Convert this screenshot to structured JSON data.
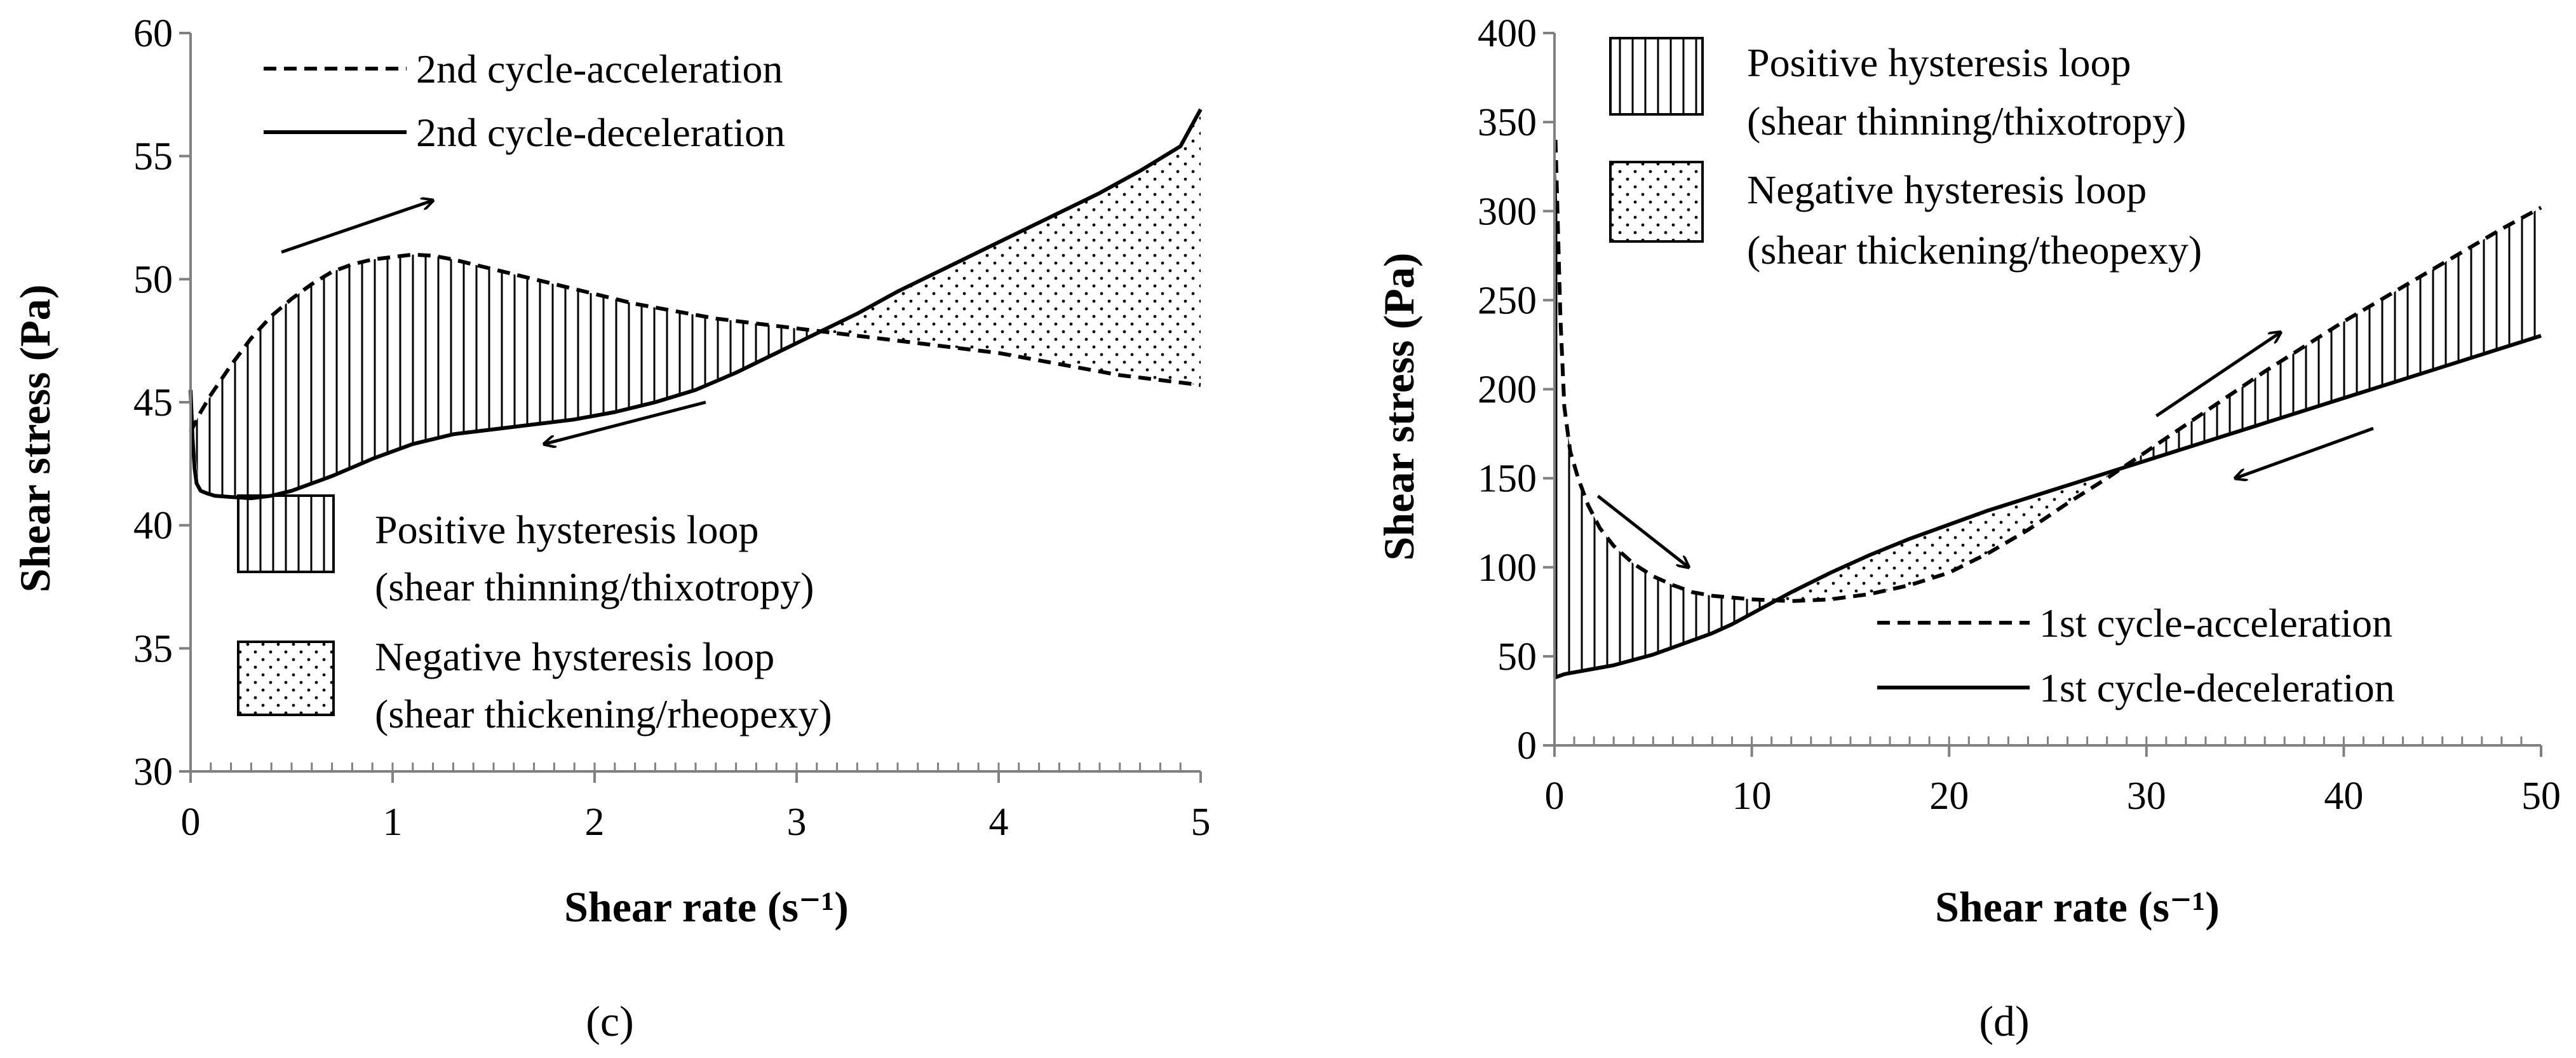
{
  "chart_data": [
    {
      "type": "line",
      "panel_label": "(c)",
      "xlabel": "Shear rate (s⁻¹)",
      "ylabel": "Shear stress (Pa)",
      "xlim": [
        0,
        5
      ],
      "ylim": [
        30,
        60
      ],
      "xticks": [
        "0",
        "1",
        "2",
        "3",
        "4",
        "5"
      ],
      "yticks": [
        "30",
        "35",
        "40",
        "45",
        "50",
        "55",
        "60"
      ],
      "series": [
        {
          "name": "2nd cycle-acceleration",
          "style": "dashed",
          "x": [
            0.0,
            0.05,
            0.1,
            0.2,
            0.3,
            0.4,
            0.5,
            0.6,
            0.7,
            0.8,
            0.9,
            1.0,
            1.1,
            1.2,
            1.3,
            1.4,
            1.5,
            1.6,
            1.7,
            1.8,
            1.9,
            2.0,
            2.2,
            2.4,
            2.6,
            2.8,
            3.0,
            3.2,
            3.4,
            3.6,
            3.8,
            4.0,
            4.2,
            4.4,
            4.6,
            4.8,
            5.0
          ],
          "y": [
            43.8,
            44.6,
            45.3,
            46.5,
            47.6,
            48.5,
            49.2,
            49.8,
            50.3,
            50.6,
            50.8,
            50.9,
            51.0,
            50.95,
            50.8,
            50.6,
            50.4,
            50.2,
            50.0,
            49.8,
            49.6,
            49.4,
            49.0,
            48.7,
            48.4,
            48.2,
            48.0,
            47.8,
            47.6,
            47.4,
            47.2,
            47.0,
            46.7,
            46.4,
            46.1,
            45.9,
            45.7
          ]
        },
        {
          "name": "2nd cycle-deceleration",
          "style": "solid",
          "x": [
            0.0,
            0.01,
            0.02,
            0.03,
            0.05,
            0.08,
            0.12,
            0.2,
            0.3,
            0.4,
            0.5,
            0.7,
            0.9,
            1.1,
            1.3,
            1.5,
            1.7,
            1.9,
            2.1,
            2.3,
            2.5,
            2.7,
            2.9,
            3.1,
            3.3,
            3.5,
            3.7,
            3.9,
            4.1,
            4.3,
            4.5,
            4.7,
            4.9,
            5.0
          ],
          "y": [
            45.5,
            43.5,
            42.3,
            41.7,
            41.4,
            41.3,
            41.2,
            41.15,
            41.1,
            41.2,
            41.4,
            42.0,
            42.7,
            43.3,
            43.7,
            43.9,
            44.1,
            44.3,
            44.6,
            45.0,
            45.5,
            46.2,
            47.0,
            47.8,
            48.6,
            49.5,
            50.3,
            51.1,
            51.9,
            52.7,
            53.5,
            54.4,
            55.4,
            56.9
          ]
        }
      ],
      "shaded_regions": [
        {
          "label": "Positive hysteresis loop",
          "description": "(shear thinning/thixotropy)",
          "x_range": [
            0,
            3.15
          ],
          "pattern": "vertical-lines"
        },
        {
          "label": "Negative hysteresis loop",
          "description": "(shear thickening/rheopexy)",
          "x_range": [
            3.15,
            5
          ],
          "pattern": "dots"
        }
      ],
      "arrows": [
        {
          "direction": "up-right",
          "x": [
            0.45,
            1.2
          ],
          "y": [
            51.1,
            53.2
          ]
        },
        {
          "direction": "down-left",
          "x": [
            2.55,
            1.75
          ],
          "y": [
            45.0,
            43.3
          ]
        }
      ],
      "legend": [
        "2nd cycle-acceleration",
        "2nd cycle-deceleration"
      ]
    },
    {
      "type": "line",
      "panel_label": "(d)",
      "xlabel": "Shear rate (s⁻¹)",
      "ylabel": "Shear stress (Pa)",
      "xlim": [
        0,
        50
      ],
      "ylim": [
        0,
        400
      ],
      "xticks": [
        "0",
        "10",
        "20",
        "30",
        "40",
        "50"
      ],
      "yticks": [
        "0",
        "50",
        "100",
        "150",
        "200",
        "250",
        "300",
        "350",
        "400"
      ],
      "series": [
        {
          "name": "1st cycle-acceleration",
          "style": "dashed",
          "x": [
            0.05,
            0.15,
            0.3,
            0.5,
            0.8,
            1.2,
            1.7,
            2.3,
            3.0,
            4.0,
            5.0,
            6.0,
            7.0,
            8.0,
            9.0,
            10.0,
            12.0,
            14.0,
            16.0,
            18.0,
            20.0,
            22.0,
            24.0,
            26.0,
            28.0,
            30.0,
            32.0,
            34.0,
            36.0,
            38.0,
            40.0,
            42.0,
            44.0,
            46.0,
            48.0,
            50.0
          ],
          "y": [
            340,
            300,
            240,
            190,
            165,
            150,
            135,
            122,
            112,
            102,
            95,
            90,
            86,
            84,
            83,
            82,
            81,
            82,
            85,
            90,
            97,
            108,
            121,
            136,
            150,
            165,
            180,
            195,
            210,
            224,
            238,
            251,
            264,
            277,
            290,
            302
          ]
        },
        {
          "name": "1st cycle-deceleration",
          "style": "solid",
          "x": [
            0.0,
            0.5,
            1.0,
            2.0,
            3.0,
            4.0,
            5.0,
            6.0,
            7.0,
            8.0,
            9.0,
            10.0,
            11.0,
            12.0,
            14.0,
            16.0,
            18.0,
            20.0,
            22.0,
            24.0,
            26.0,
            28.0,
            30.0,
            32.0,
            34.0,
            36.0,
            38.0,
            40.0,
            42.0,
            44.0,
            46.0,
            48.0,
            50.0
          ],
          "y": [
            38,
            40,
            41,
            43,
            45,
            48,
            51,
            55,
            59,
            63,
            68,
            74,
            80,
            86,
            97,
            107,
            116,
            124,
            132,
            139,
            146,
            153,
            160,
            167,
            174,
            181,
            188,
            195,
            202,
            209,
            216,
            223,
            230
          ]
        }
      ],
      "shaded_regions": [
        {
          "label": "Positive hysteresis loop",
          "description": "(shear thinning/thixotropy)",
          "x_range": [
            0,
            11.5
          ],
          "pattern": "vertical-lines"
        },
        {
          "label": "Negative hysteresis loop",
          "description": "(shear thickening/theopexy)",
          "x_range": [
            11.5,
            28
          ],
          "pattern": "dots"
        },
        {
          "label": "Positive hysteresis loop",
          "description": "(shear thinning/thixotropy)",
          "x_range": [
            28,
            50
          ],
          "pattern": "vertical-lines"
        }
      ],
      "arrows": [
        {
          "direction": "down-right",
          "x": [
            2.2,
            6.8
          ],
          "y": [
            140,
            100
          ]
        },
        {
          "direction": "up-right",
          "x": [
            30.5,
            36.8
          ],
          "y": [
            185,
            232
          ]
        },
        {
          "direction": "down-left",
          "x": [
            41.5,
            34.5
          ],
          "y": [
            178,
            150
          ]
        }
      ],
      "legend": [
        "1st cycle-acceleration",
        "1st cycle-deceleration"
      ]
    }
  ]
}
